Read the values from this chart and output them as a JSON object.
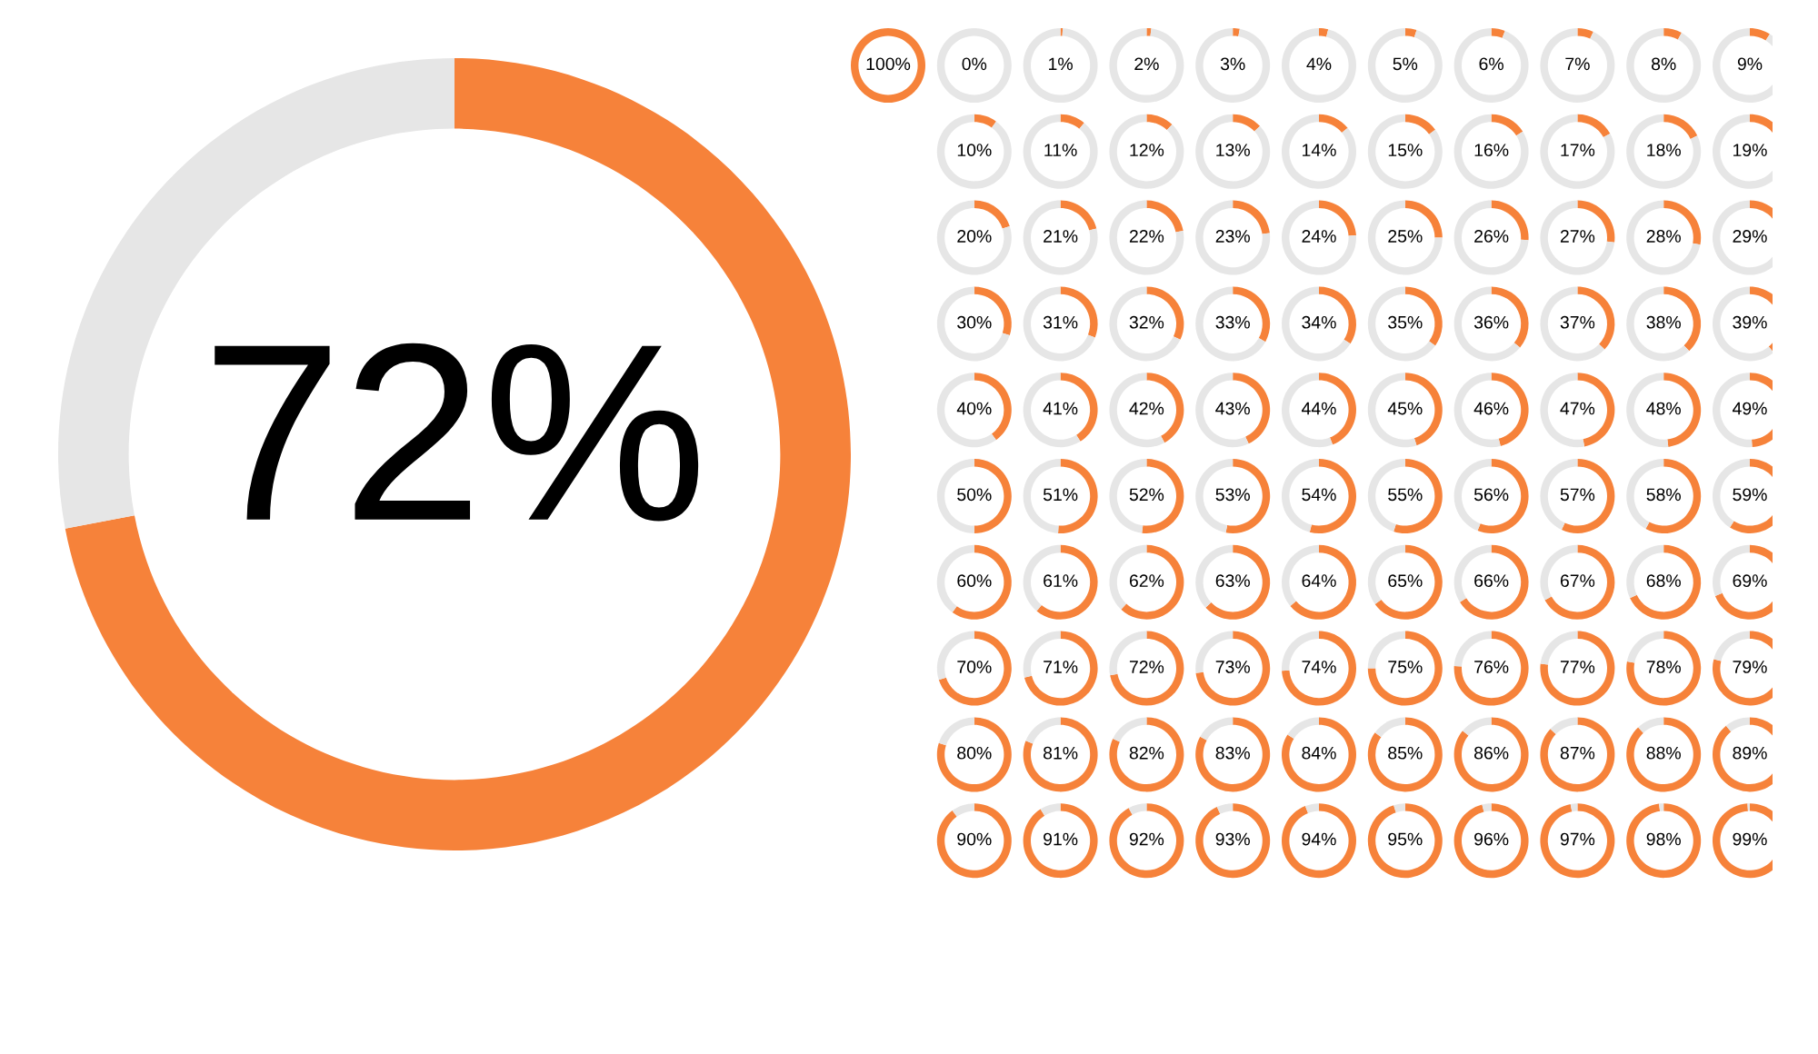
{
  "chart_data": [
    {
      "type": "donut",
      "categories": [
        null,
        null
      ],
      "values": [
        72,
        28
      ],
      "colors": [
        "#f6823a",
        "#e6e6e6"
      ],
      "value_labels": [
        "72%",
        null
      ]
    },
    {
      "type": "other",
      "color": "#f6823a",
      "values": [
        100,
        0,
        1,
        2,
        3,
        4,
        5,
        6,
        7,
        8,
        9,
        10,
        11,
        12,
        13,
        14,
        15,
        16,
        17,
        18,
        19,
        20,
        21,
        22,
        23,
        24,
        25,
        26,
        27,
        28,
        29,
        30,
        31,
        32,
        33,
        34,
        35,
        36,
        37,
        38,
        39,
        40,
        41,
        42,
        43,
        44,
        45,
        46,
        47,
        48,
        49,
        50,
        51,
        52,
        53,
        54,
        55,
        56,
        57,
        58,
        59,
        60,
        61,
        62,
        63,
        64,
        65,
        66,
        67,
        68,
        69,
        70,
        71,
        72,
        73,
        74,
        75,
        76,
        77,
        78,
        79,
        80,
        81,
        82,
        83,
        84,
        85,
        86,
        87,
        88,
        89,
        90,
        91,
        92,
        93,
        94,
        95,
        96,
        97,
        98,
        99
      ],
      "value_labels": [
        "100%",
        "0%",
        "1%",
        "2%",
        "3%",
        "4%",
        "5%",
        "6%",
        "7%",
        "8%",
        "9%",
        "10%",
        "11%",
        "12%",
        "13%",
        "14%",
        "15%",
        "16%",
        "17%",
        "18%",
        "19%",
        "20%",
        "21%",
        "22%",
        "23%",
        "24%",
        "25%",
        "26%",
        "27%",
        "28%",
        "29%",
        "30%",
        "31%",
        "32%",
        "33%",
        "34%",
        "35%",
        "36%",
        "37%",
        "38%",
        "39%",
        "40%",
        "41%",
        "42%",
        "43%",
        "44%",
        "45%",
        "46%",
        "47%",
        "48%",
        "49%",
        "50%",
        "51%",
        "52%",
        "53%",
        "54%",
        "55%",
        "56%",
        "57%",
        "58%",
        "59%",
        "60%",
        "61%",
        "62%",
        "63%",
        "64%",
        "65%",
        "66%",
        "67%",
        "68%",
        "69%",
        "70%",
        "71%",
        "72%",
        "73%",
        "74%",
        "75%",
        "76%",
        "77%",
        "78%",
        "79%",
        "80%",
        "81%",
        "82%",
        "83%",
        "84%",
        "85%",
        "86%",
        "87%",
        "88%",
        "89%",
        "90%",
        "91%",
        "92%",
        "93%",
        "94%",
        "95%",
        "96%",
        "97%",
        "98%",
        "99%"
      ]
    }
  ]
}
